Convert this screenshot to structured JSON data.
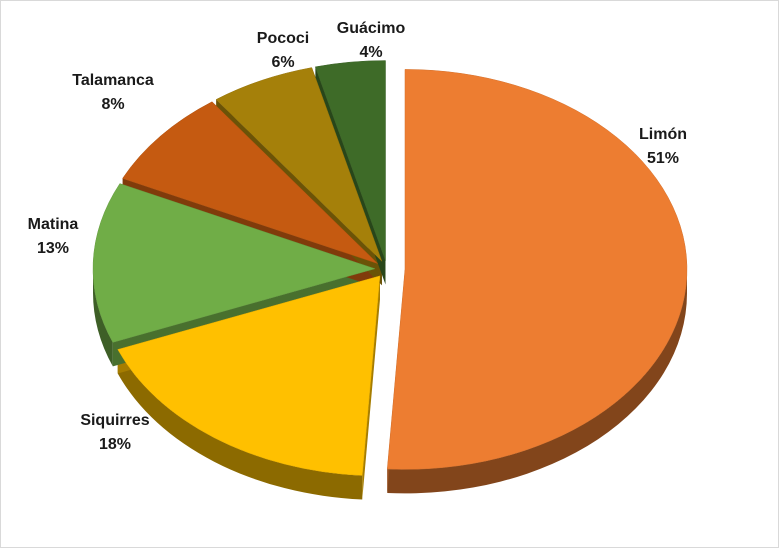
{
  "chart_data": {
    "type": "pie",
    "style": "3d-exploded",
    "title": "",
    "categories": [
      "Limón",
      "Siquirres",
      "Matina",
      "Talamanca",
      "Pococi",
      "Guácimo"
    ],
    "values": [
      51,
      18,
      13,
      8,
      6,
      4
    ],
    "labels": [
      "51%",
      "18%",
      "13%",
      "8%",
      "6%",
      "4%"
    ],
    "colors": [
      "#ED7D31",
      "#FFC000",
      "#70AD47",
      "#C55A11",
      "#A5800A",
      "#3E6B28"
    ],
    "legend": "none"
  }
}
